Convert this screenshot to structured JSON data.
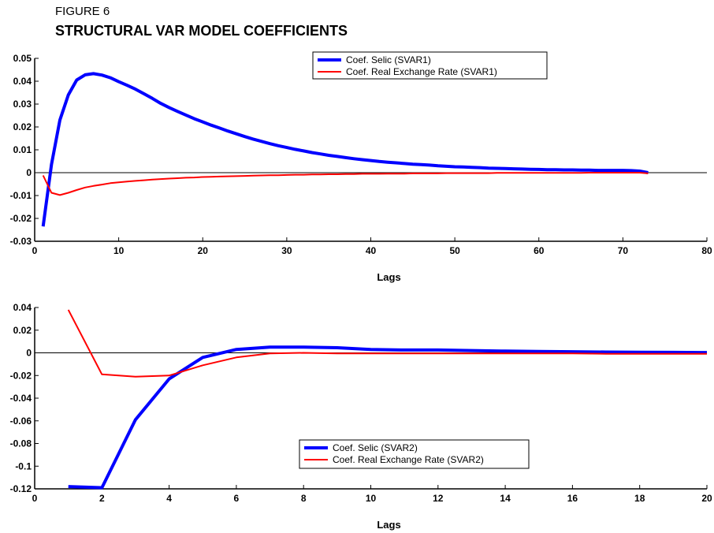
{
  "figure": {
    "label": "FIGURE 6",
    "title": "STRUCTURAL VAR MODEL COEFFICIENTS"
  },
  "chart_data": [
    {
      "type": "line",
      "xlabel": "Lags",
      "ylabel": "",
      "xlim": [
        0,
        80
      ],
      "ylim": [
        -0.03,
        0.05
      ],
      "xticks": [
        0,
        10,
        20,
        30,
        40,
        50,
        60,
        70,
        80
      ],
      "xtick_labels": [
        "0",
        "10",
        "20",
        "30",
        "40",
        "50",
        "60",
        "70",
        "80"
      ],
      "yticks": [
        -0.03,
        -0.02,
        -0.01,
        0,
        0.01,
        0.02,
        0.03,
        0.04,
        0.05
      ],
      "ytick_labels": [
        "-0.03",
        "-0.02",
        "-0.01",
        "0",
        "0.01",
        "0.02",
        "0.03",
        "0.04",
        "0.05"
      ],
      "zero_line": true,
      "grid": false,
      "legend_position": "top-center",
      "series": [
        {
          "name": "Coef. Selic (SVAR1)",
          "color": "#0000ff",
          "width": 4,
          "x": [
            1,
            2,
            3,
            4,
            5,
            6,
            7,
            8,
            9,
            10,
            11,
            12,
            13,
            14,
            15,
            16,
            17,
            18,
            19,
            20,
            21,
            22,
            23,
            24,
            25,
            26,
            27,
            28,
            29,
            30,
            31,
            32,
            33,
            34,
            35,
            36,
            37,
            38,
            39,
            40,
            41,
            42,
            43,
            44,
            45,
            46,
            47,
            48,
            49,
            50,
            51,
            52,
            53,
            54,
            55,
            56,
            57,
            58,
            59,
            60,
            61,
            62,
            63,
            64,
            65,
            66,
            67,
            68,
            69,
            70,
            71,
            72,
            73
          ],
          "values": [
            -0.0235,
            0.0035,
            0.023,
            0.034,
            0.0405,
            0.0428,
            0.0433,
            0.0427,
            0.0415,
            0.0398,
            0.0382,
            0.0365,
            0.0345,
            0.0325,
            0.0303,
            0.0285,
            0.0268,
            0.0252,
            0.0236,
            0.0222,
            0.0208,
            0.0195,
            0.0182,
            0.017,
            0.0158,
            0.0147,
            0.0137,
            0.0127,
            0.0118,
            0.011,
            0.0102,
            0.0095,
            0.0088,
            0.0082,
            0.0076,
            0.0071,
            0.0066,
            0.0061,
            0.0057,
            0.0053,
            0.0049,
            0.0046,
            0.0043,
            0.004,
            0.0037,
            0.0035,
            0.0033,
            0.003,
            0.0028,
            0.0026,
            0.0025,
            0.0023,
            0.0022,
            0.002,
            0.0019,
            0.0018,
            0.0017,
            0.0016,
            0.0015,
            0.0014,
            0.0013,
            0.0013,
            0.0012,
            0.0012,
            0.0011,
            0.0011,
            0.001,
            0.001,
            0.001,
            0.001,
            0.0009,
            0.0007,
            0.0
          ]
        },
        {
          "name": "Coef. Real Exchange Rate (SVAR1)",
          "color": "#ff0000",
          "width": 2,
          "x": [
            1,
            2,
            3,
            4,
            5,
            6,
            7,
            8,
            9,
            10,
            11,
            12,
            13,
            14,
            15,
            16,
            17,
            18,
            19,
            20,
            21,
            22,
            23,
            24,
            25,
            26,
            27,
            28,
            29,
            30,
            31,
            32,
            33,
            34,
            35,
            36,
            37,
            38,
            39,
            40,
            41,
            42,
            43,
            44,
            45,
            46,
            47,
            48,
            49,
            50,
            51,
            52,
            53,
            54,
            55,
            56,
            57,
            58,
            59,
            60,
            61,
            62,
            63,
            64,
            65,
            66,
            67,
            68,
            69,
            70,
            71,
            72,
            73
          ],
          "values": [
            -0.0012,
            -0.0088,
            -0.0098,
            -0.0088,
            -0.0076,
            -0.0065,
            -0.0058,
            -0.0052,
            -0.0046,
            -0.0042,
            -0.0039,
            -0.0036,
            -0.0033,
            -0.003,
            -0.0028,
            -0.0026,
            -0.0024,
            -0.0022,
            -0.0021,
            -0.0019,
            -0.0018,
            -0.0017,
            -0.0016,
            -0.0015,
            -0.0014,
            -0.0013,
            -0.0012,
            -0.0011,
            -0.0011,
            -0.001,
            -0.0009,
            -0.0009,
            -0.0008,
            -0.0008,
            -0.0007,
            -0.0007,
            -0.0006,
            -0.0006,
            -0.0005,
            -0.0005,
            -0.0005,
            -0.0004,
            -0.0004,
            -0.0004,
            -0.0003,
            -0.0003,
            -0.0003,
            -0.0003,
            -0.0002,
            -0.0002,
            -0.0002,
            -0.0002,
            -0.0002,
            -0.0002,
            -0.0001,
            -0.0001,
            -0.0001,
            -0.0001,
            -0.0001,
            -0.0001,
            -0.0001,
            -0.0001,
            -0.0001,
            -0.0001,
            -0.0001,
            0,
            0,
            0,
            0,
            0,
            0,
            0,
            -0.0003
          ]
        }
      ]
    },
    {
      "type": "line",
      "xlabel": "Lags",
      "ylabel": "",
      "xlim": [
        0,
        20
      ],
      "ylim": [
        -0.12,
        0.04
      ],
      "xticks": [
        0,
        2,
        4,
        6,
        8,
        10,
        12,
        14,
        16,
        18,
        20
      ],
      "xtick_labels": [
        "0",
        "2",
        "4",
        "6",
        "8",
        "10",
        "12",
        "14",
        "16",
        "18",
        "20"
      ],
      "yticks": [
        -0.12,
        -0.1,
        -0.08,
        -0.06,
        -0.04,
        -0.02,
        0,
        0.02,
        0.04
      ],
      "ytick_labels": [
        "-0.12",
        "-0.1",
        "-0.08",
        "-0.06",
        "-0.04",
        "-0.02",
        "0",
        "0.02",
        "0.04"
      ],
      "zero_line": true,
      "grid": false,
      "legend_position": "bottom-center",
      "series": [
        {
          "name": "Coef. Selic (SVAR2)",
          "color": "#0000ff",
          "width": 4,
          "x": [
            1,
            2,
            3,
            4,
            5,
            6,
            7,
            8,
            9,
            10,
            11,
            12,
            13,
            14,
            15,
            16,
            17,
            18,
            19,
            20
          ],
          "values": [
            -0.118,
            -0.119,
            -0.059,
            -0.023,
            -0.004,
            0.003,
            0.005,
            0.005,
            0.0045,
            0.003,
            0.0025,
            0.0025,
            0.002,
            0.0015,
            0.0012,
            0.001,
            0.0007,
            0.0005,
            0.0004,
            0.0003
          ]
        },
        {
          "name": "Coef. Real Exchange Rate (SVAR2)",
          "color": "#ff0000",
          "width": 2,
          "x": [
            1,
            2,
            3,
            4,
            5,
            6,
            7,
            8,
            9,
            10,
            11,
            12,
            13,
            14,
            15,
            16,
            17,
            18,
            19,
            20
          ],
          "values": [
            0.038,
            -0.019,
            -0.021,
            -0.02,
            -0.011,
            -0.004,
            -0.0005,
            0.0,
            -0.0005,
            -0.0005,
            -0.0005,
            -0.0005,
            -0.0005,
            -0.0005,
            -0.0005,
            -0.0005,
            -0.0008,
            -0.0008,
            -0.0008,
            -0.0008
          ]
        }
      ]
    }
  ]
}
